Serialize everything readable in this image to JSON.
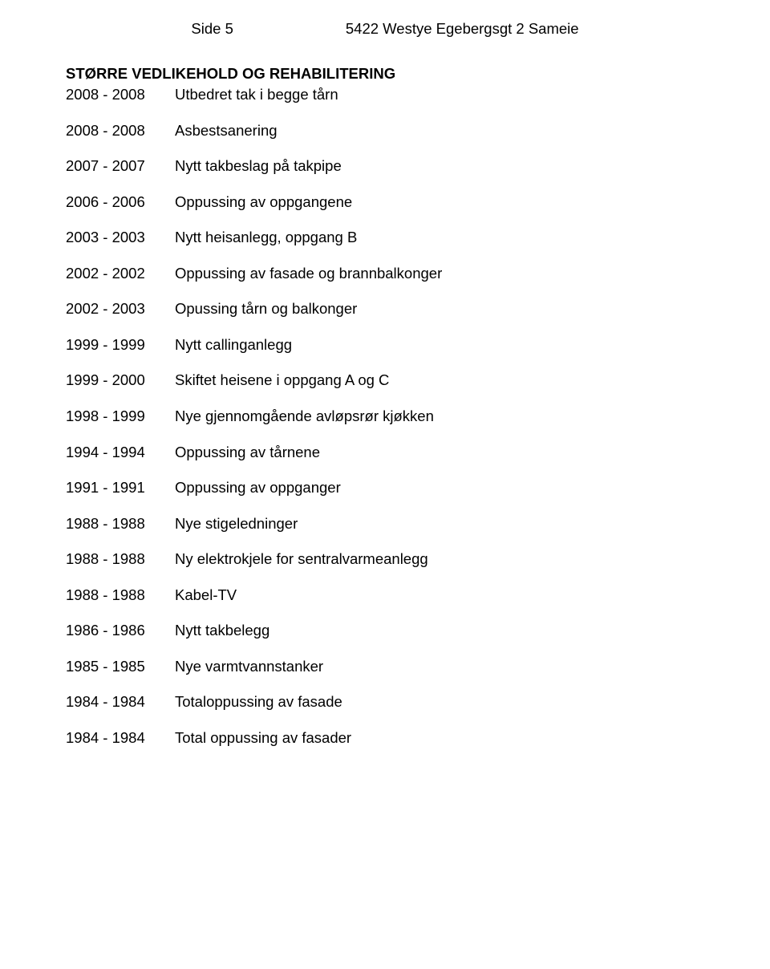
{
  "header": {
    "page_label": "Side 5",
    "doc_title": "5422 Westye Egebergsgt 2 Sameie"
  },
  "section_title": "STØRRE VEDLIKEHOLD OG REHABILITERING",
  "entries": [
    {
      "years": "2008 - 2008",
      "desc": "Utbedret tak i begge tårn"
    },
    {
      "years": "2008 - 2008",
      "desc": "Asbestsanering"
    },
    {
      "years": "2007 - 2007",
      "desc": "Nytt takbeslag på takpipe"
    },
    {
      "years": "2006 - 2006",
      "desc": "Oppussing av oppgangene"
    },
    {
      "years": "2003 - 2003",
      "desc": "Nytt heisanlegg, oppgang B"
    },
    {
      "years": "2002 - 2002",
      "desc": "Oppussing av fasade og brannbalkonger"
    },
    {
      "years": "2002 - 2003",
      "desc": "Opussing tårn og balkonger"
    },
    {
      "years": "1999 - 1999",
      "desc": "Nytt callinganlegg"
    },
    {
      "years": "1999 - 2000",
      "desc": "Skiftet heisene i oppgang A og C"
    },
    {
      "years": "1998 - 1999",
      "desc": "Nye gjennomgående avløpsrør kjøkken"
    },
    {
      "years": "1994 - 1994",
      "desc": "Oppussing av tårnene"
    },
    {
      "years": "1991 - 1991",
      "desc": "Oppussing av oppganger"
    },
    {
      "years": "1988 - 1988",
      "desc": "Nye stigeledninger"
    },
    {
      "years": "1988 - 1988",
      "desc": "Ny elektrokjele for sentralvarmeanlegg"
    },
    {
      "years": "1988 - 1988",
      "desc": "Kabel-TV"
    },
    {
      "years": "1986 - 1986",
      "desc": "Nytt takbelegg"
    },
    {
      "years": "1985 - 1985",
      "desc": "Nye varmtvannstanker"
    },
    {
      "years": "1984 - 1984",
      "desc": "Totaloppussing av fasade"
    },
    {
      "years": "1984 - 1984",
      "desc": "Total oppussing av fasader"
    }
  ]
}
